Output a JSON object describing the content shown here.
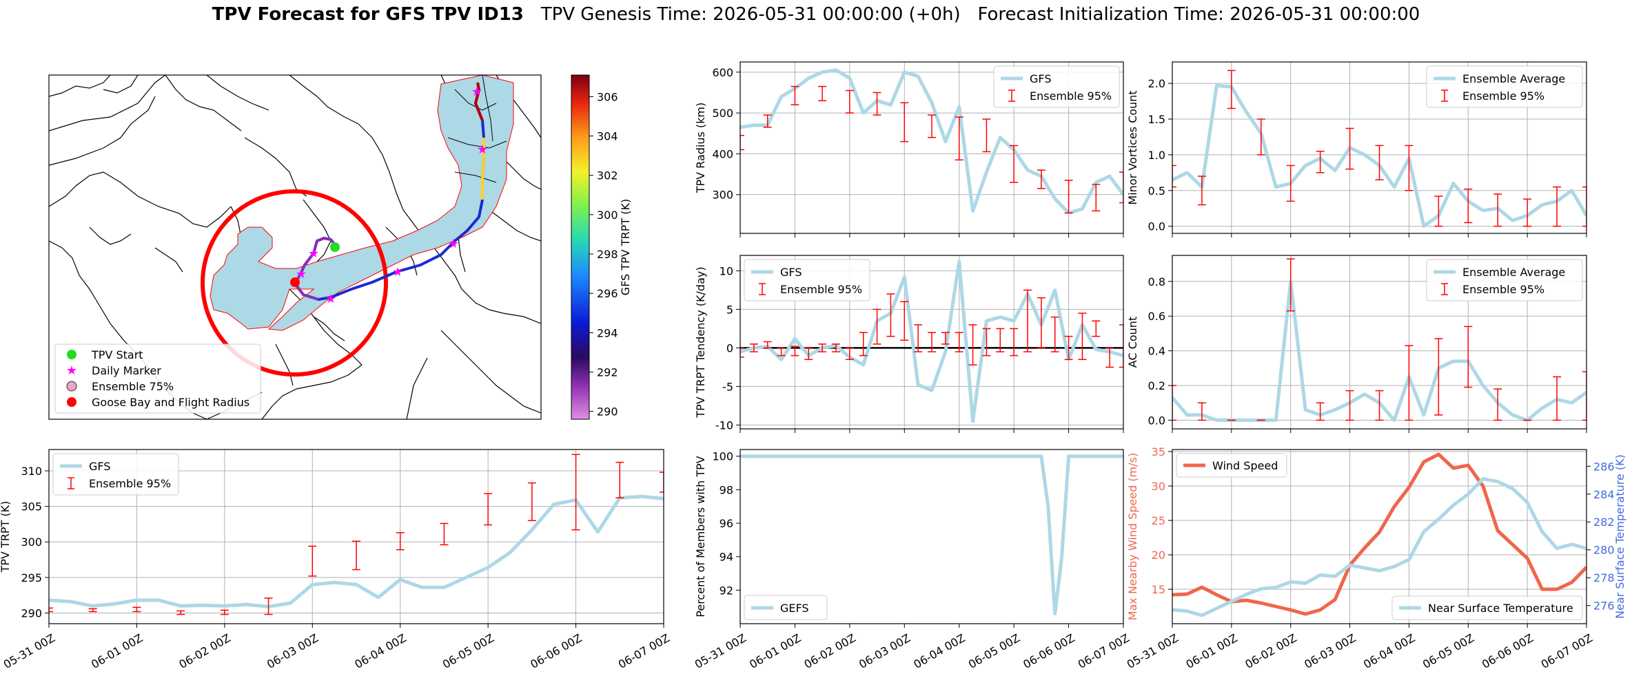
{
  "title": {
    "main": "TPV Forecast for GFS TPV ID13",
    "genesis": "TPV Genesis Time: 2026-05-31 00:00:00 (+0h)",
    "init": "Forecast Initialization Time: 2026-05-31 00:00:00"
  },
  "colors": {
    "light_blue": "#add8e6",
    "error_red": "#ff0000",
    "wind": "#f0664b",
    "temp_axis": "#4169e1",
    "ensemble_fill": "#add8e6",
    "ensemble_edge": "#ff0000",
    "radius_circle": "#ff0000"
  },
  "time_ticks": [
    "05-31 00Z",
    "06-01 00Z",
    "06-02 00Z",
    "06-03 00Z",
    "06-04 00Z",
    "06-05 00Z",
    "06-06 00Z",
    "06-07 00Z"
  ],
  "map": {
    "colorbar": {
      "label": "GFS TPV TRPT (K)",
      "ticks": [
        290,
        292,
        294,
        296,
        298,
        300,
        302,
        304,
        306
      ],
      "range": [
        289.6,
        307.1
      ]
    },
    "legend": [
      "TPV Start",
      "Daily Marker",
      "Ensemble 75%",
      "Goose Bay and Flight Radius"
    ],
    "icons": [
      "green-dot-icon",
      "magenta-star-icon",
      "pink-circle-icon",
      "red-dot-icon"
    ]
  },
  "chart_data": [
    {
      "name": "tpv-radius",
      "type": "line",
      "ylabel": "TPV Radius (km)",
      "ylim": [
        205,
        625
      ],
      "yticks": [
        300,
        400,
        500,
        600
      ],
      "xlim": [
        0,
        7
      ],
      "legend": [
        "GFS",
        "Ensemble 95%"
      ],
      "legend_pos": "top-right",
      "grid": true,
      "series": [
        {
          "name": "GFS",
          "x": [
            0,
            0.25,
            0.5,
            0.75,
            1,
            1.25,
            1.5,
            1.75,
            2,
            2.25,
            2.5,
            2.75,
            3,
            3.25,
            3.5,
            3.75,
            4,
            4.25,
            4.5,
            4.75,
            5,
            5.25,
            5.5,
            5.75,
            6,
            6.25,
            6.5,
            6.75,
            7
          ],
          "y": [
            465,
            470,
            470,
            540,
            560,
            585,
            600,
            605,
            585,
            500,
            530,
            520,
            600,
            590,
            525,
            430,
            515,
            260,
            355,
            440,
            410,
            360,
            345,
            290,
            255,
            265,
            330,
            345,
            300
          ]
        }
      ],
      "errorbars": {
        "name": "Ensemble 95%",
        "x": [
          0,
          0.25,
          0.5,
          0.75,
          1,
          1.25,
          1.5,
          1.75,
          2,
          2.25,
          2.5,
          2.75,
          3,
          3.25,
          3.5,
          3.75,
          4,
          4.25,
          4.5,
          4.75,
          5,
          5.25,
          5.5,
          5.75,
          6,
          6.25,
          6.5,
          6.75,
          7
        ],
        "lo": [
          410,
          0,
          465,
          0,
          520,
          0,
          530,
          0,
          500,
          0,
          495,
          0,
          430,
          0,
          440,
          0,
          385,
          0,
          405,
          0,
          330,
          0,
          315,
          0,
          255,
          0,
          260,
          0,
          280
        ],
        "hi": [
          445,
          0,
          495,
          0,
          565,
          0,
          565,
          0,
          555,
          0,
          550,
          0,
          525,
          0,
          495,
          0,
          490,
          0,
          485,
          0,
          420,
          0,
          360,
          0,
          335,
          0,
          325,
          0,
          355
        ]
      }
    },
    {
      "name": "minor-vortices",
      "type": "line",
      "ylabel": "Minor Vortices Count",
      "ylim": [
        -0.1,
        2.3
      ],
      "yticks": [
        0.0,
        0.5,
        1.0,
        1.5,
        2.0
      ],
      "xlim": [
        0,
        7
      ],
      "legend": [
        "Ensemble Average",
        "Ensemble 95%"
      ],
      "legend_pos": "top-right",
      "grid": true,
      "series": [
        {
          "name": "Ensemble Average",
          "x": [
            0,
            0.25,
            0.5,
            0.75,
            1,
            1.25,
            1.5,
            1.75,
            2,
            2.25,
            2.5,
            2.75,
            3,
            3.25,
            3.5,
            3.75,
            4,
            4.25,
            4.5,
            4.75,
            5,
            5.25,
            5.5,
            5.75,
            6,
            6.25,
            6.5,
            6.75,
            7
          ],
          "y": [
            0.65,
            0.75,
            0.55,
            1.97,
            1.95,
            1.6,
            1.3,
            0.55,
            0.6,
            0.85,
            0.95,
            0.78,
            1.1,
            1.0,
            0.85,
            0.55,
            0.95,
            0.0,
            0.15,
            0.6,
            0.35,
            0.22,
            0.25,
            0.08,
            0.15,
            0.3,
            0.35,
            0.5,
            0.15
          ]
        }
      ],
      "errorbars": {
        "name": "Ensemble 95%",
        "x": [
          0,
          0.5,
          1,
          1.5,
          2,
          2.5,
          3,
          3.5,
          4,
          4.5,
          5,
          5.5,
          6,
          6.5,
          7
        ],
        "lo": [
          0.55,
          0.3,
          1.65,
          1.0,
          0.35,
          0.75,
          0.8,
          0.65,
          0.5,
          0.0,
          0.05,
          0.0,
          0.0,
          0.0,
          0.0
        ],
        "hi": [
          0.85,
          0.7,
          2.18,
          1.5,
          0.85,
          1.05,
          1.37,
          1.13,
          1.13,
          0.42,
          0.52,
          0.45,
          0.38,
          0.55,
          0.55
        ]
      }
    },
    {
      "name": "trpt-tendency",
      "type": "line",
      "ylabel": "TPV TRPT Tendency (K/day)",
      "ylim": [
        -10.5,
        12
      ],
      "yticks": [
        -10,
        -5,
        0,
        5,
        10
      ],
      "xlim": [
        0,
        7
      ],
      "legend": [
        "GFS",
        "Ensemble 95%"
      ],
      "legend_pos": "top-left",
      "grid": true,
      "hline": 0,
      "series": [
        {
          "name": "GFS",
          "x": [
            0,
            0.25,
            0.5,
            0.75,
            1,
            1.25,
            1.5,
            1.75,
            2,
            2.25,
            2.5,
            2.75,
            3,
            3.25,
            3.5,
            3.75,
            4,
            4.25,
            4.5,
            4.75,
            5,
            5.25,
            5.5,
            5.75,
            6,
            6.25,
            6.5,
            6.75,
            7
          ],
          "y": [
            -0.5,
            0.0,
            0.2,
            -1.5,
            1.2,
            -1.0,
            0.0,
            0.3,
            -1.2,
            -2.2,
            3.5,
            4.5,
            9.2,
            -4.8,
            -5.5,
            -0.5,
            11.2,
            -9.5,
            3.5,
            4.0,
            3.5,
            7.0,
            3.0,
            7.5,
            -1.5,
            3.0,
            -0.2,
            -0.5,
            -1.0
          ]
        }
      ],
      "errorbars": {
        "name": "Ensemble 95%",
        "x": [
          0,
          0.25,
          0.5,
          0.75,
          1,
          1.25,
          1.5,
          1.75,
          2,
          2.25,
          2.5,
          2.75,
          3,
          3.25,
          3.5,
          3.75,
          4,
          4.25,
          4.5,
          4.75,
          5,
          5.25,
          5.5,
          5.75,
          6,
          6.25,
          6.5,
          6.75,
          7
        ],
        "lo": [
          -1.2,
          -0.5,
          0.0,
          -1.0,
          -1.0,
          -1.5,
          -0.5,
          -0.5,
          -1.5,
          -1.0,
          0.5,
          1.5,
          1.0,
          -0.5,
          -0.5,
          0.5,
          -0.5,
          -2.2,
          -1.0,
          -0.5,
          -1.0,
          -0.5,
          0.0,
          -0.5,
          -1.5,
          -1.5,
          1.5,
          -2.5,
          -2.5
        ],
        "hi": [
          0.0,
          0.5,
          0.8,
          0.0,
          0.2,
          0.0,
          0.5,
          0.5,
          0.0,
          2.0,
          5.0,
          7.0,
          6.0,
          3.0,
          2.0,
          2.0,
          2.0,
          3.0,
          2.5,
          2.5,
          2.5,
          7.5,
          6.5,
          4.0,
          1.5,
          4.5,
          3.5,
          0.0,
          3.0
        ]
      }
    },
    {
      "name": "ac-count",
      "type": "line",
      "ylabel": "AC Count",
      "ylim": [
        -0.05,
        0.95
      ],
      "yticks": [
        0.0,
        0.2,
        0.4,
        0.6,
        0.8
      ],
      "xlim": [
        0,
        7
      ],
      "legend": [
        "Ensemble Average",
        "Ensemble 95%"
      ],
      "legend_pos": "top-right",
      "grid": true,
      "series": [
        {
          "name": "Ensemble Average",
          "x": [
            0,
            0.25,
            0.5,
            0.75,
            1,
            1.25,
            1.5,
            1.75,
            2,
            2.25,
            2.5,
            2.75,
            3,
            3.25,
            3.5,
            3.75,
            4,
            4.25,
            4.5,
            4.75,
            5,
            5.25,
            5.5,
            5.75,
            6,
            6.25,
            6.5,
            6.75,
            7
          ],
          "y": [
            0.13,
            0.03,
            0.03,
            0.0,
            0.0,
            0.0,
            0.0,
            0.0,
            0.8,
            0.06,
            0.03,
            0.06,
            0.1,
            0.15,
            0.1,
            0.0,
            0.25,
            0.03,
            0.3,
            0.34,
            0.34,
            0.2,
            0.1,
            0.03,
            0.0,
            0.07,
            0.12,
            0.1,
            0.16
          ]
        }
      ],
      "errorbars": {
        "name": "Ensemble 95%",
        "x": [
          0,
          0.5,
          1,
          1.5,
          2,
          2.5,
          3,
          3.5,
          4,
          4.5,
          5,
          5.5,
          6,
          6.5,
          7
        ],
        "lo": [
          0.0,
          0.0,
          0.0,
          0.0,
          0.63,
          0.0,
          0.0,
          0.0,
          0.0,
          0.03,
          0.19,
          0.0,
          0.0,
          0.0,
          0.0
        ],
        "hi": [
          0.2,
          0.1,
          0.0,
          0.0,
          0.93,
          0.1,
          0.17,
          0.17,
          0.43,
          0.47,
          0.54,
          0.18,
          0.0,
          0.25,
          0.28
        ]
      }
    },
    {
      "name": "tpv-trpt",
      "type": "line",
      "ylabel": "TPV TRPT (K)",
      "ylim": [
        288.5,
        313
      ],
      "yticks": [
        290,
        295,
        300,
        305,
        310
      ],
      "xlim": [
        0,
        7
      ],
      "legend": [
        "GFS",
        "Ensemble 95%"
      ],
      "legend_pos": "top-left",
      "grid": true,
      "series": [
        {
          "name": "GFS",
          "x": [
            0,
            0.25,
            0.5,
            0.75,
            1,
            1.25,
            1.5,
            1.75,
            2,
            2.25,
            2.5,
            2.75,
            3,
            3.25,
            3.5,
            3.75,
            4,
            4.25,
            4.5,
            4.75,
            5,
            5.25,
            5.5,
            5.75,
            6,
            6.25,
            6.5,
            6.75,
            7
          ],
          "y": [
            291.8,
            291.6,
            291.0,
            291.3,
            291.8,
            291.8,
            291.0,
            291.1,
            291.0,
            291.2,
            290.9,
            291.4,
            294.0,
            294.3,
            294.0,
            292.2,
            294.7,
            293.6,
            293.6,
            295.0,
            296.4,
            298.5,
            301.7,
            305.3,
            305.9,
            301.4,
            306.2,
            306.4,
            306.1
          ]
        }
      ],
      "errorbars": {
        "name": "Ensemble 95%",
        "x": [
          0,
          0.5,
          1,
          1.5,
          2,
          2.5,
          3,
          3.5,
          4,
          4.5,
          5,
          5.5,
          6,
          6.5,
          7
        ],
        "lo": [
          290.2,
          290.2,
          290.2,
          289.8,
          289.8,
          289.8,
          295.2,
          296.1,
          298.9,
          299.6,
          302.4,
          303.0,
          301.7,
          306.2,
          307.0
        ],
        "hi": [
          290.7,
          290.6,
          290.8,
          290.3,
          290.4,
          292.1,
          299.4,
          300.1,
          301.3,
          302.6,
          306.8,
          308.3,
          312.3,
          311.2,
          309.8
        ]
      }
    },
    {
      "name": "percent-members",
      "type": "line",
      "ylabel": "Percent of Members with TPV",
      "ylim": [
        90.0,
        100.4
      ],
      "yticks": [
        92,
        94,
        96,
        98,
        100
      ],
      "xlim": [
        0,
        7
      ],
      "legend": [
        "GEFS"
      ],
      "legend_pos": "bottom-left",
      "grid": false,
      "series": [
        {
          "name": "GEFS",
          "x": [
            0,
            0.5,
            1,
            1.5,
            2,
            2.5,
            3,
            3.5,
            4,
            4.5,
            5,
            5.25,
            5.5,
            5.625,
            5.75,
            5.875,
            6,
            6.125,
            6.25,
            6.5,
            7
          ],
          "y": [
            100,
            100,
            100,
            100,
            100,
            100,
            100,
            100,
            100,
            100,
            100,
            100,
            100,
            97,
            90.6,
            94,
            100,
            100,
            100,
            100,
            100
          ]
        }
      ]
    },
    {
      "name": "wind-temp",
      "type": "line",
      "ylabel": "Max Nearby Wind Speed (m/s)",
      "ylabel_right": "Near Surface Temperature (K)",
      "ylim": [
        10,
        35.3
      ],
      "yticks": [
        15,
        20,
        25,
        30,
        35
      ],
      "ylim_right": [
        274.7,
        287.2
      ],
      "yticks_right": [
        276,
        278,
        280,
        282,
        284,
        286
      ],
      "xlim": [
        0,
        7
      ],
      "legend": [
        "Wind Speed",
        "Near Surface Temperature"
      ],
      "grid": true,
      "series": [
        {
          "name": "Wind Speed",
          "axis": "left",
          "x": [
            0,
            0.25,
            0.5,
            0.75,
            1,
            1.25,
            1.5,
            1.75,
            2,
            2.25,
            2.5,
            2.75,
            3,
            3.25,
            3.5,
            3.75,
            4,
            4.25,
            4.5,
            4.75,
            5,
            5.25,
            5.5,
            5.75,
            6,
            6.25,
            6.5,
            6.75,
            7
          ],
          "y": [
            14.2,
            14.3,
            15.3,
            14.2,
            13.2,
            13.4,
            13.0,
            12.5,
            12.0,
            11.4,
            12.0,
            13.5,
            18.5,
            21.0,
            23.3,
            27.0,
            29.8,
            33.5,
            34.6,
            32.6,
            33.0,
            30.0,
            23.5,
            21.5,
            19.5,
            15.0,
            15.0,
            16.0,
            18.2
          ]
        },
        {
          "name": "Near Surface Temperature",
          "axis": "right",
          "x": [
            0,
            0.25,
            0.5,
            0.75,
            1,
            1.25,
            1.5,
            1.75,
            2,
            2.25,
            2.5,
            2.75,
            3,
            3.25,
            3.5,
            3.75,
            4,
            4.25,
            4.5,
            4.75,
            5,
            5.25,
            5.5,
            5.75,
            6,
            6.25,
            6.5,
            6.75,
            7
          ],
          "y": [
            275.7,
            275.6,
            275.3,
            275.8,
            276.3,
            276.8,
            277.2,
            277.3,
            277.7,
            277.6,
            278.2,
            278.1,
            278.9,
            278.7,
            278.5,
            278.8,
            279.3,
            281.3,
            282.2,
            283.2,
            284.0,
            285.1,
            284.9,
            284.4,
            283.4,
            281.3,
            280.1,
            280.4,
            280.1
          ]
        }
      ]
    }
  ]
}
